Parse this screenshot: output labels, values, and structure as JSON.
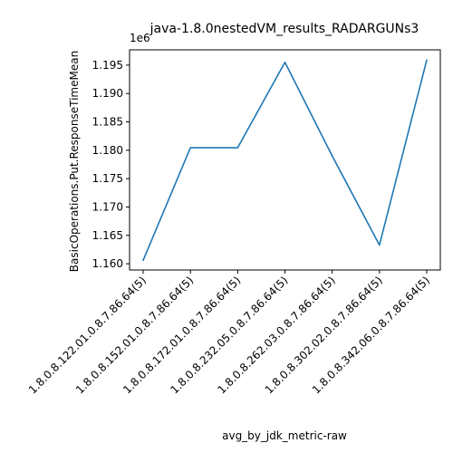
{
  "chart_data": {
    "type": "line",
    "title": "java-1.8.0nestedVM_results_RADARGUNs3",
    "xlabel": "avg_by_jdk_metric-raw",
    "ylabel": "BasicOperations.Put.ResponseTimeMean",
    "y_offset_label": "1e6",
    "categories": [
      "1.8.0.8.122.01.0.8.7.86.64(5)",
      "1.8.0.8.152.01.0.8.7.86.64(5)",
      "1.8.0.8.172.01.0.8.7.86.64(5)",
      "1.8.0.8.232.05.0.8.7.86.64(5)",
      "1.8.0.8.262.03.0.8.7.86.64(5)",
      "1.8.0.8.302.02.0.8.7.86.64(5)",
      "1.8.0.8.342.06.0.8.7.86.64(5)"
    ],
    "series": [
      {
        "values": [
          1160600,
          1180450,
          1180450,
          1195500,
          1179000,
          1163300,
          1195900
        ],
        "color": "#1f77b4"
      }
    ],
    "yticks": [
      1.16,
      1.165,
      1.17,
      1.175,
      1.18,
      1.185,
      1.19,
      1.195
    ],
    "ylim": [
      1158900,
      1197700
    ],
    "grid": false,
    "legend": "none"
  }
}
